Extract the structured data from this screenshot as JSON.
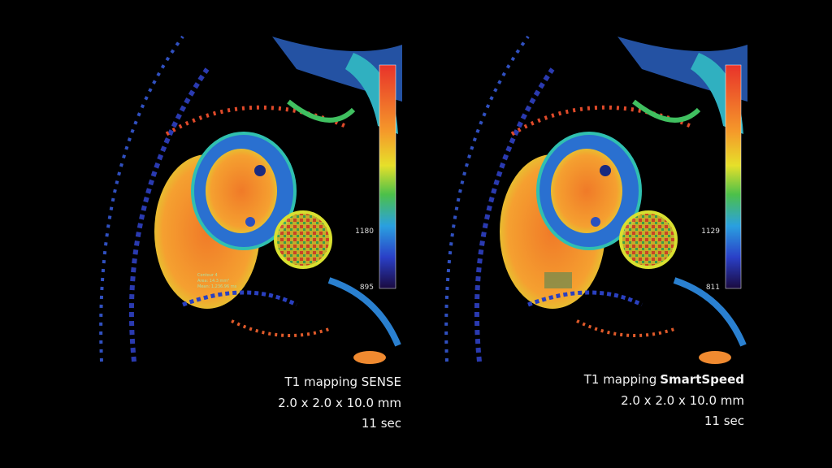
{
  "panels": [
    {
      "caption": {
        "line1": "T1 mapping SENSE",
        "line2": "2.0 x 2.0 x 10.0 mm",
        "line3": "11 sec"
      },
      "scale_labels": [
        "1180",
        "895"
      ],
      "contour": [
        "Contour 4",
        "Area: 14.3 mm²",
        "Mean: 1,236.96 ms"
      ]
    },
    {
      "caption": {
        "line1": "T1 mapping",
        "line1_bold": "SmartSpeed",
        "line2": "2.0 x 2.0 x 10.0 mm",
        "line3": "11 sec"
      },
      "scale_labels": [
        "1129",
        "811"
      ]
    }
  ]
}
